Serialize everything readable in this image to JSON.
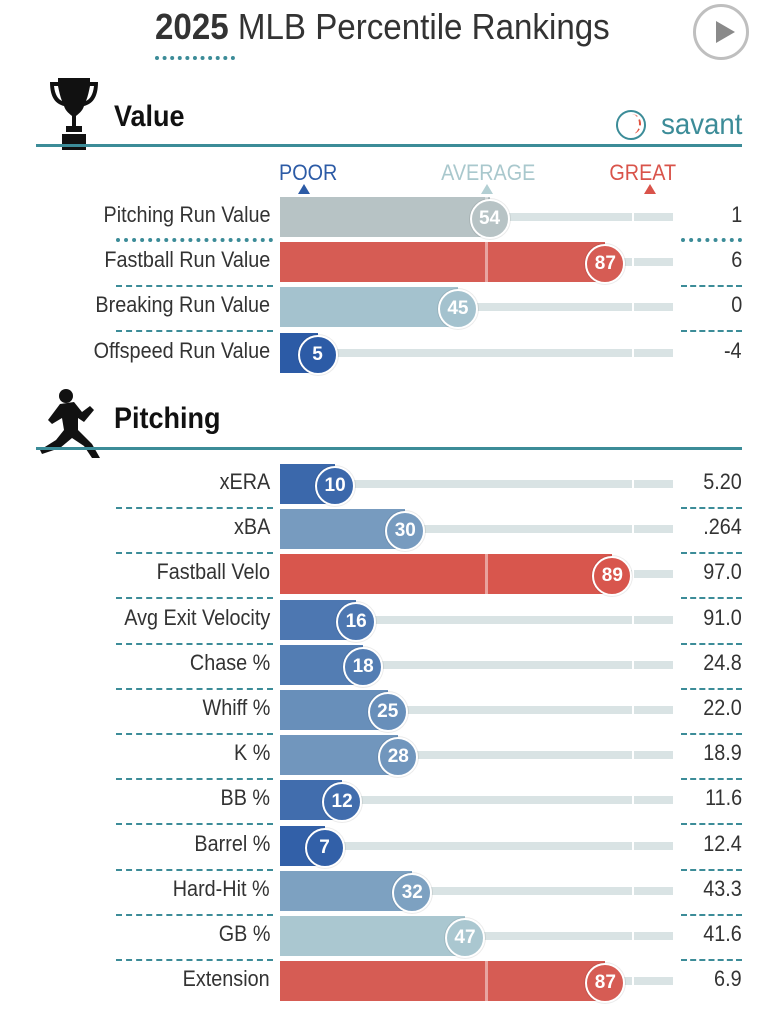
{
  "header": {
    "title_year": "2025",
    "title_rest": " MLB Percentile Rankings",
    "play_button": "play-icon"
  },
  "scale": {
    "poor": "POOR",
    "average": "AVERAGE",
    "great": "GREAT"
  },
  "colors": {
    "accent": "#3c8c98",
    "poor": "#2c5ba6",
    "average": "#b3cfd3",
    "great": "#d9534a",
    "track": "#d9e3e4"
  },
  "brand": {
    "text": "savant",
    "icon": "baseball-icon"
  },
  "chart_data": [
    {
      "type": "bar",
      "title": "Value",
      "icon": "trophy-icon",
      "xlim": [
        0,
        100
      ],
      "metrics": [
        {
          "name": "Pitching Run Value",
          "percentile": 54,
          "value": "1"
        },
        {
          "name": "Fastball Run Value",
          "percentile": 87,
          "value": "6"
        },
        {
          "name": "Breaking Run Value",
          "percentile": 45,
          "value": "0"
        },
        {
          "name": "Offspeed Run Value",
          "percentile": 5,
          "value": "-4"
        }
      ]
    },
    {
      "type": "bar",
      "title": "Pitching",
      "icon": "pitcher-icon",
      "xlim": [
        0,
        100
      ],
      "metrics": [
        {
          "name": "xERA",
          "percentile": 10,
          "value": "5.20"
        },
        {
          "name": "xBA",
          "percentile": 30,
          "value": ".264"
        },
        {
          "name": "Fastball Velo",
          "percentile": 89,
          "value": "97.0"
        },
        {
          "name": "Avg Exit Velocity",
          "percentile": 16,
          "value": "91.0"
        },
        {
          "name": "Chase %",
          "percentile": 18,
          "value": "24.8"
        },
        {
          "name": "Whiff %",
          "percentile": 25,
          "value": "22.0"
        },
        {
          "name": "K %",
          "percentile": 28,
          "value": "18.9"
        },
        {
          "name": "BB %",
          "percentile": 12,
          "value": "11.6"
        },
        {
          "name": "Barrel %",
          "percentile": 7,
          "value": "12.4"
        },
        {
          "name": "Hard-Hit %",
          "percentile": 32,
          "value": "43.3"
        },
        {
          "name": "GB %",
          "percentile": 47,
          "value": "41.6"
        },
        {
          "name": "Extension",
          "percentile": 87,
          "value": "6.9"
        }
      ]
    }
  ]
}
